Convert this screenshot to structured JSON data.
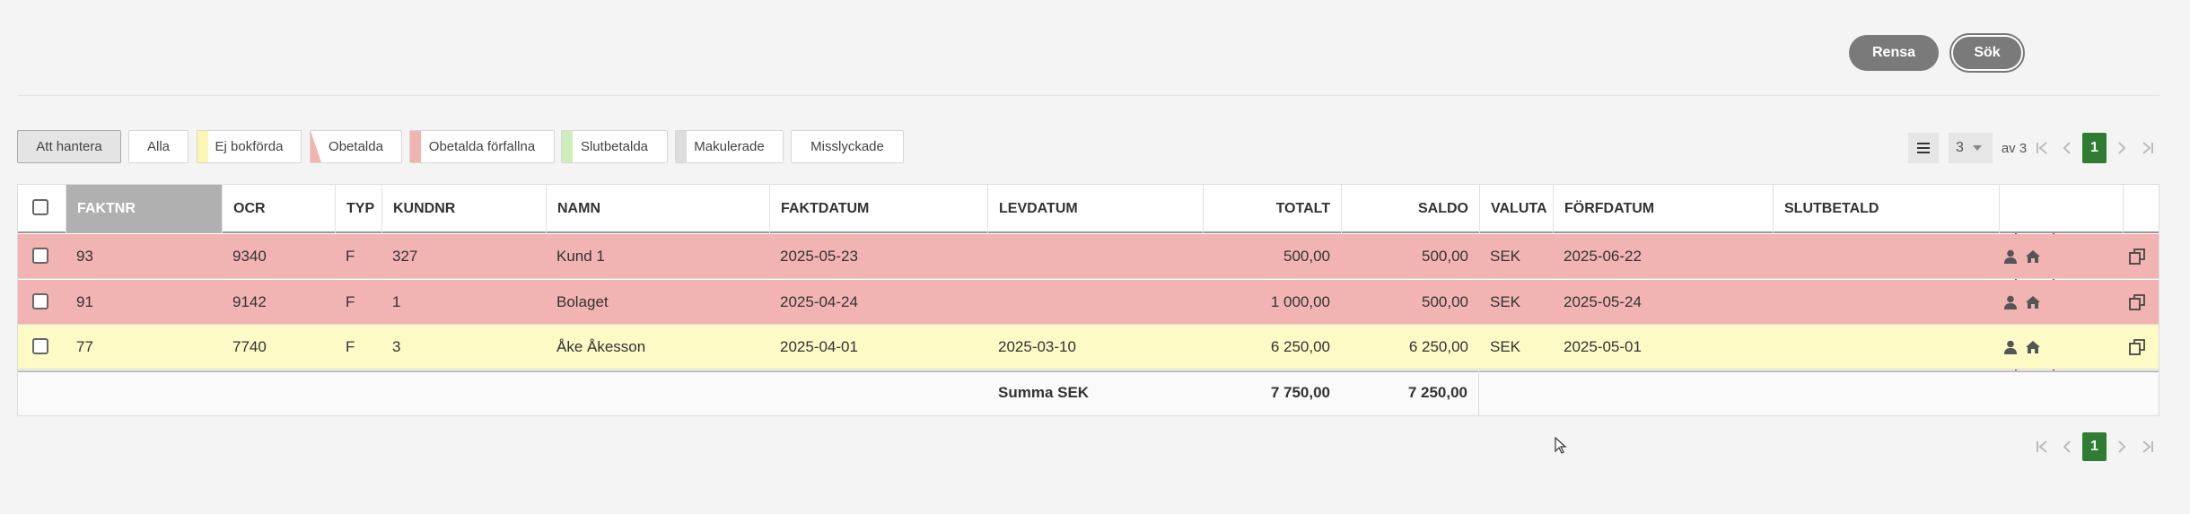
{
  "buttons": {
    "clear": "Rensa",
    "search": "Sök"
  },
  "filters": [
    {
      "label": "Att hantera",
      "color": null
    },
    {
      "label": "Alla",
      "color": null
    },
    {
      "label": "Ej bokförda",
      "color": "#fbf7b0"
    },
    {
      "label": "Obetalda",
      "color": "#f2b3b3"
    },
    {
      "label": "Obetalda förfallna",
      "color": "#f2b3b3"
    },
    {
      "label": "Slutbetalda",
      "color": "#cdeebc"
    },
    {
      "label": "Makulerade",
      "color": "#dddddd"
    },
    {
      "label": "Misslyckade",
      "color": null
    }
  ],
  "pagination": {
    "page_size": "3",
    "of_pages": "av 3",
    "current_page": "1"
  },
  "table": {
    "columns": [
      "FAKTNR",
      "OCR",
      "TYP",
      "KUNDNR",
      "NAMN",
      "FAKTDATUM",
      "LEVDATUM",
      "TOTALT",
      "SALDO",
      "VALUTA",
      "FÖRFDATUM",
      "SLUTBETALD"
    ],
    "rows": [
      {
        "color": "#f2b3b3",
        "cells": [
          "93",
          "9340",
          "F",
          "327",
          "Kund 1",
          "2025-05-23",
          null,
          "500,00",
          "500,00",
          "SEK",
          "2025-06-22"
        ]
      },
      {
        "color": "#f2b3b3",
        "cells": [
          "91",
          "9142",
          "F",
          "1",
          "Bolaget",
          "2025-04-24",
          null,
          "1 000,00",
          "500,00",
          "SEK",
          "2025-05-24"
        ]
      },
      {
        "color": "#fdfac6",
        "cells": [
          "77",
          "7740",
          "F",
          "3",
          "Åke Åkesson",
          "2025-04-01",
          "2025-03-10",
          "6 250,00",
          "6 250,00",
          "SEK",
          "2025-05-01"
        ]
      }
    ],
    "footer": {
      "label": "Summa SEK",
      "totalt": "7 750,00",
      "saldo": "7 250,00"
    }
  }
}
